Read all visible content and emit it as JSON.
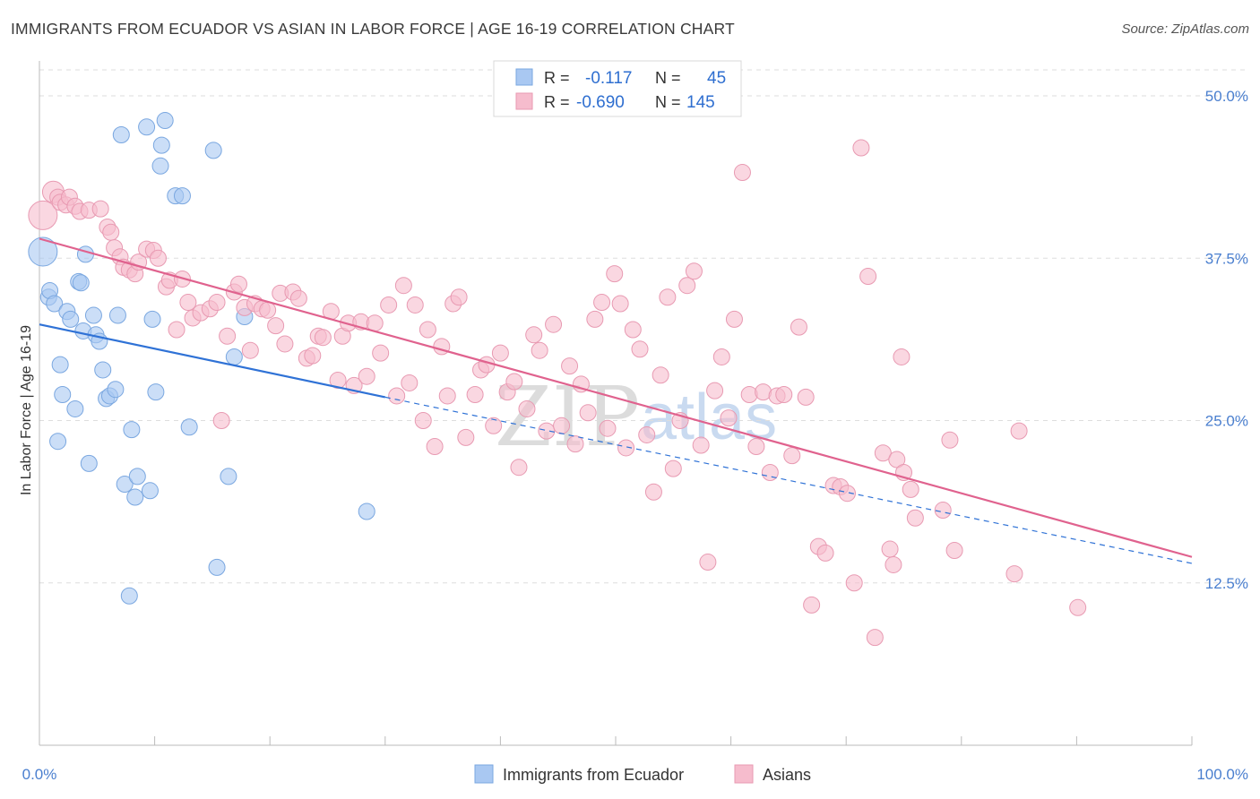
{
  "title": "IMMIGRANTS FROM ECUADOR VS ASIAN IN LABOR FORCE | AGE 16-19 CORRELATION CHART",
  "source": "Source: ZipAtlas.com",
  "watermark": {
    "zip": "ZIP",
    "atlas": "atlas"
  },
  "legend_top": {
    "rows": [
      {
        "r_label": "R =",
        "r_value": "-0.117",
        "n_label": "N =",
        "n_value": "45",
        "color": "#a9c8f2"
      },
      {
        "r_label": "R =",
        "r_value": "-0.690",
        "n_label": "N =",
        "n_value": "145",
        "color": "#f6bccd"
      }
    ]
  },
  "legend_bottom": {
    "items": [
      {
        "label": "Immigrants from Ecuador",
        "color": "#a9c8f2"
      },
      {
        "label": "Asians",
        "color": "#f6bccd"
      }
    ]
  },
  "chart_data": {
    "type": "scatter",
    "title": "IMMIGRANTS FROM ECUADOR VS ASIAN IN LABOR FORCE | AGE 16-19 CORRELATION CHART",
    "xlabel": "",
    "ylabel": "In Labor Force | Age 16-19",
    "xlim": [
      0,
      100
    ],
    "ylim": [
      0,
      52
    ],
    "x_tick_labels": [
      "0.0%",
      "100.0%"
    ],
    "y_ticks": [
      12.5,
      25.0,
      37.5,
      50.0
    ],
    "y_tick_labels": [
      "12.5%",
      "25.0%",
      "37.5%",
      "50.0%"
    ],
    "grid": true,
    "series": [
      {
        "name": "Immigrants from Ecuador",
        "color": "#a9c8f2",
        "edge": "#7aa7e0",
        "line_color": "#2f72d6",
        "trend": {
          "x0": 0,
          "y0": 32.4,
          "x1": 30,
          "y1": 26.8,
          "dash_x1": 100,
          "dash_y1": 14.0
        },
        "points": [
          [
            0.3,
            38.0
          ],
          [
            0.8,
            34.5
          ],
          [
            0.9,
            35.0
          ],
          [
            1.3,
            34.0
          ],
          [
            1.6,
            23.4
          ],
          [
            1.8,
            29.3
          ],
          [
            2.0,
            27.0
          ],
          [
            2.4,
            33.4
          ],
          [
            2.7,
            32.8
          ],
          [
            3.1,
            25.9
          ],
          [
            3.4,
            35.7
          ],
          [
            3.6,
            35.6
          ],
          [
            3.8,
            31.9
          ],
          [
            4.0,
            37.8
          ],
          [
            4.3,
            21.7
          ],
          [
            4.7,
            33.1
          ],
          [
            4.9,
            31.6
          ],
          [
            5.2,
            31.1
          ],
          [
            5.5,
            28.9
          ],
          [
            5.8,
            26.7
          ],
          [
            6.1,
            26.9
          ],
          [
            6.6,
            27.4
          ],
          [
            6.8,
            33.1
          ],
          [
            7.1,
            47.0
          ],
          [
            7.4,
            20.1
          ],
          [
            7.8,
            11.5
          ],
          [
            8.0,
            24.3
          ],
          [
            8.3,
            19.1
          ],
          [
            8.5,
            20.7
          ],
          [
            9.3,
            47.6
          ],
          [
            9.6,
            19.6
          ],
          [
            9.8,
            32.8
          ],
          [
            10.1,
            27.2
          ],
          [
            10.5,
            44.6
          ],
          [
            10.6,
            46.2
          ],
          [
            10.9,
            48.1
          ],
          [
            11.8,
            42.3
          ],
          [
            12.4,
            42.3
          ],
          [
            13.0,
            24.5
          ],
          [
            15.1,
            45.8
          ],
          [
            15.4,
            13.7
          ],
          [
            16.4,
            20.7
          ],
          [
            16.9,
            29.9
          ],
          [
            17.8,
            33.0
          ],
          [
            28.4,
            18.0
          ]
        ]
      },
      {
        "name": "Asians",
        "color": "#f6bccd",
        "edge": "#e89ab2",
        "line_color": "#e0628e",
        "trend": {
          "x0": 0,
          "y0": 39.0,
          "x1": 100,
          "y1": 14.5
        },
        "points": [
          [
            0.3,
            40.8
          ],
          [
            1.2,
            42.6
          ],
          [
            1.6,
            42.2
          ],
          [
            1.8,
            41.8
          ],
          [
            2.3,
            41.6
          ],
          [
            2.6,
            42.2
          ],
          [
            3.1,
            41.5
          ],
          [
            3.5,
            41.1
          ],
          [
            4.3,
            41.2
          ],
          [
            5.3,
            41.3
          ],
          [
            5.9,
            39.9
          ],
          [
            6.2,
            39.5
          ],
          [
            6.5,
            38.3
          ],
          [
            7.0,
            37.6
          ],
          [
            7.3,
            36.8
          ],
          [
            7.8,
            36.6
          ],
          [
            8.3,
            36.3
          ],
          [
            8.6,
            37.2
          ],
          [
            9.3,
            38.2
          ],
          [
            9.9,
            38.1
          ],
          [
            10.3,
            37.5
          ],
          [
            11.0,
            35.3
          ],
          [
            11.3,
            35.8
          ],
          [
            11.9,
            32.0
          ],
          [
            12.4,
            35.9
          ],
          [
            12.9,
            34.1
          ],
          [
            13.3,
            32.9
          ],
          [
            14.0,
            33.3
          ],
          [
            14.8,
            33.6
          ],
          [
            15.4,
            34.1
          ],
          [
            15.8,
            25.0
          ],
          [
            16.3,
            31.5
          ],
          [
            16.9,
            34.9
          ],
          [
            17.3,
            35.5
          ],
          [
            17.8,
            33.7
          ],
          [
            18.3,
            30.4
          ],
          [
            18.7,
            34.0
          ],
          [
            19.3,
            33.6
          ],
          [
            19.8,
            33.5
          ],
          [
            20.5,
            32.3
          ],
          [
            20.9,
            34.8
          ],
          [
            21.3,
            30.9
          ],
          [
            22.0,
            34.9
          ],
          [
            22.5,
            34.4
          ],
          [
            23.2,
            29.8
          ],
          [
            23.7,
            30.0
          ],
          [
            24.2,
            31.5
          ],
          [
            24.6,
            31.4
          ],
          [
            25.3,
            33.4
          ],
          [
            25.9,
            28.1
          ],
          [
            26.3,
            31.5
          ],
          [
            26.8,
            32.5
          ],
          [
            27.3,
            27.7
          ],
          [
            27.9,
            32.6
          ],
          [
            28.4,
            28.4
          ],
          [
            29.1,
            32.5
          ],
          [
            29.6,
            30.2
          ],
          [
            30.3,
            33.9
          ],
          [
            31.0,
            26.9
          ],
          [
            31.6,
            35.4
          ],
          [
            32.1,
            27.9
          ],
          [
            32.6,
            33.9
          ],
          [
            33.3,
            25.0
          ],
          [
            33.7,
            32.0
          ],
          [
            34.3,
            23.0
          ],
          [
            34.9,
            30.7
          ],
          [
            35.4,
            26.9
          ],
          [
            35.9,
            34.0
          ],
          [
            36.4,
            34.5
          ],
          [
            37.0,
            23.7
          ],
          [
            37.8,
            27.0
          ],
          [
            38.3,
            28.9
          ],
          [
            38.8,
            29.3
          ],
          [
            39.4,
            24.6
          ],
          [
            40.0,
            30.2
          ],
          [
            40.6,
            27.2
          ],
          [
            41.2,
            28.0
          ],
          [
            41.6,
            21.4
          ],
          [
            42.3,
            25.9
          ],
          [
            42.9,
            31.6
          ],
          [
            43.4,
            30.4
          ],
          [
            44.0,
            24.2
          ],
          [
            44.6,
            32.4
          ],
          [
            45.3,
            24.6
          ],
          [
            46.0,
            29.2
          ],
          [
            46.5,
            23.2
          ],
          [
            47.0,
            27.8
          ],
          [
            47.6,
            25.6
          ],
          [
            48.2,
            32.8
          ],
          [
            48.8,
            34.1
          ],
          [
            49.3,
            24.4
          ],
          [
            49.9,
            36.3
          ],
          [
            50.4,
            34.0
          ],
          [
            50.9,
            22.9
          ],
          [
            51.5,
            32.0
          ],
          [
            52.1,
            30.5
          ],
          [
            52.7,
            23.9
          ],
          [
            53.3,
            19.5
          ],
          [
            53.9,
            28.5
          ],
          [
            54.5,
            34.5
          ],
          [
            55.0,
            21.3
          ],
          [
            55.6,
            25.0
          ],
          [
            56.2,
            35.4
          ],
          [
            56.8,
            36.5
          ],
          [
            57.4,
            23.1
          ],
          [
            58.0,
            14.1
          ],
          [
            58.6,
            27.3
          ],
          [
            59.2,
            29.9
          ],
          [
            59.8,
            25.2
          ],
          [
            60.3,
            32.8
          ],
          [
            61.0,
            44.1
          ],
          [
            61.6,
            27.0
          ],
          [
            62.2,
            23.0
          ],
          [
            62.8,
            27.2
          ],
          [
            63.4,
            21.0
          ],
          [
            64.0,
            26.9
          ],
          [
            64.6,
            27.0
          ],
          [
            65.3,
            22.3
          ],
          [
            65.9,
            32.2
          ],
          [
            66.5,
            26.8
          ],
          [
            67.0,
            10.8
          ],
          [
            67.6,
            15.3
          ],
          [
            68.2,
            14.8
          ],
          [
            68.9,
            20.0
          ],
          [
            69.5,
            19.9
          ],
          [
            70.1,
            19.4
          ],
          [
            70.7,
            12.5
          ],
          [
            71.3,
            46.0
          ],
          [
            71.9,
            36.1
          ],
          [
            72.5,
            8.3
          ],
          [
            73.2,
            22.5
          ],
          [
            73.8,
            15.1
          ],
          [
            74.4,
            22.0
          ],
          [
            75.0,
            21.0
          ],
          [
            75.6,
            19.7
          ],
          [
            79.4,
            15.0
          ],
          [
            74.1,
            13.9
          ],
          [
            76.0,
            17.5
          ],
          [
            78.4,
            18.1
          ],
          [
            84.6,
            13.2
          ],
          [
            90.1,
            10.6
          ],
          [
            74.8,
            29.9
          ],
          [
            79.0,
            23.5
          ],
          [
            85.0,
            24.2
          ]
        ]
      }
    ]
  }
}
